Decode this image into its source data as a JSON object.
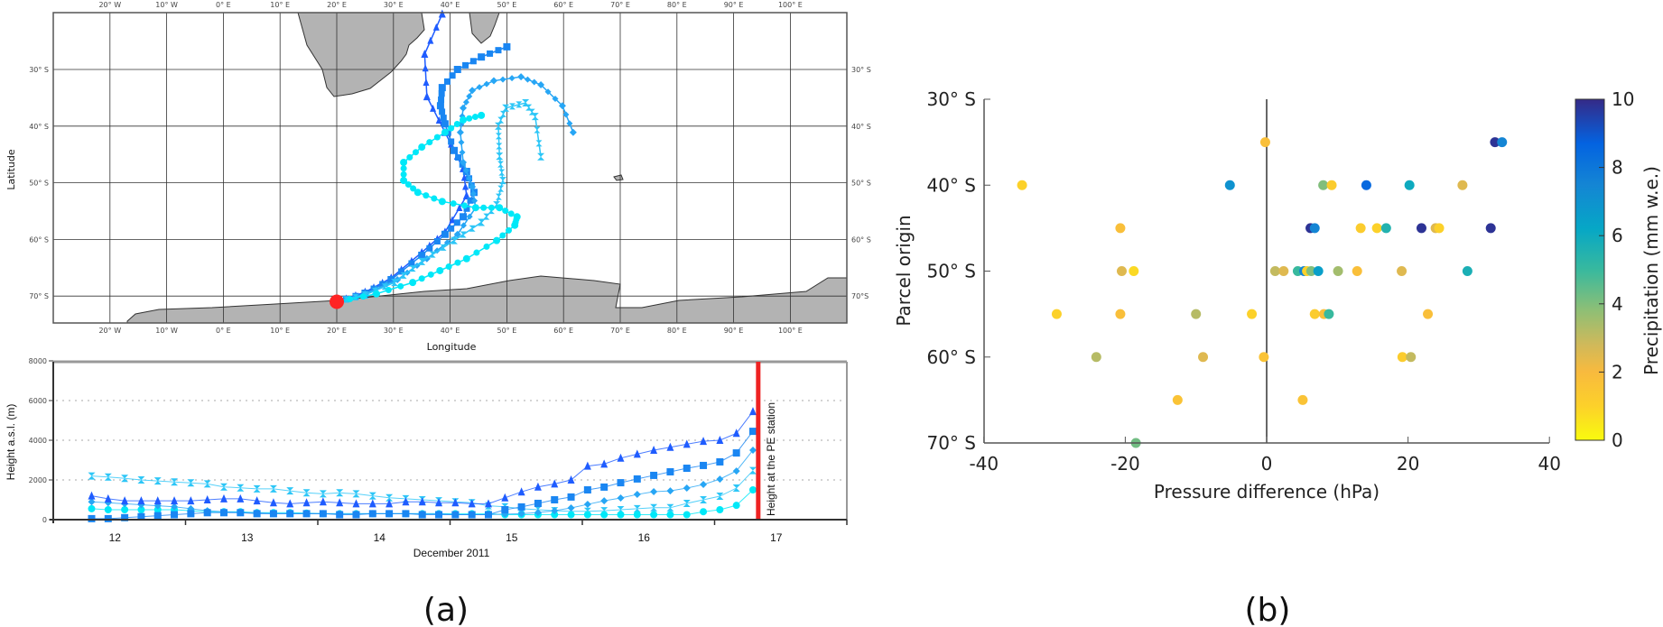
{
  "panel_labels": {
    "a": "(a)",
    "b": "(b)"
  },
  "chart_data": [
    {
      "type": "line",
      "panel": "a-top",
      "xlabel": "Longitude",
      "ylabel": "Latitude",
      "xlim": [
        -30,
        110
      ],
      "ylim": [
        -75,
        -20
      ],
      "x_ticks": [
        -20,
        -10,
        0,
        10,
        20,
        30,
        40,
        50,
        60,
        70,
        80,
        90,
        100
      ],
      "x_tick_labels": [
        "20° W",
        "10° W",
        "0° E",
        "10° E",
        "20° E",
        "30° E",
        "40° E",
        "50° E",
        "60° E",
        "70° E",
        "80° E",
        "90° E",
        "100° E"
      ],
      "y_ticks": [
        -30,
        -40,
        -50,
        -60,
        -70
      ],
      "y_tick_labels_left": [
        "30° S",
        "40° S",
        "50° S",
        "60° S",
        "70° S"
      ],
      "y_tick_labels_right": [
        "30° S",
        "40° S",
        "50° S",
        "60° S",
        "70°S"
      ],
      "grid": true,
      "land_color": "#b3b3b3",
      "station": {
        "lon": 20,
        "lat": -71,
        "color": "#ff2424"
      },
      "series": [
        {
          "marker": "triangle",
          "color": "#1f5cff",
          "lon": [
            38.6,
            35.5,
            35.9,
            39.1,
            42.3,
            42.9,
            39.1,
            35,
            29.6,
            25,
            20
          ],
          "lat": [
            -20.2,
            -27.3,
            -34.8,
            -41.1,
            -47.5,
            -52.3,
            -58.7,
            -62.3,
            -66.8,
            -69.3,
            -71
          ]
        },
        {
          "marker": "square",
          "color": "#1a86f2",
          "lon": [
            50,
            45.5,
            41.3,
            38.6,
            38.3,
            39.1,
            40.7,
            42.9,
            44.2,
            42.3,
            39.1,
            35,
            29.6,
            25,
            20
          ],
          "lat": [
            -26,
            -27.8,
            -30,
            -33.2,
            -36.4,
            -39.6,
            -44.3,
            -48,
            -51.7,
            -56,
            -59.1,
            -62.8,
            -67.1,
            -69.5,
            -71
          ]
        },
        {
          "marker": "diamond",
          "color": "#27a6f5",
          "lon": [
            61.7,
            59.8,
            56,
            52.5,
            47.7,
            43.9,
            42.3,
            41.8,
            42.3,
            43.9,
            44.5,
            41.3,
            35.9,
            30.7,
            25,
            20
          ],
          "lat": [
            -41.1,
            -36.4,
            -32.7,
            -31.3,
            -32,
            -33.7,
            -36.8,
            -41.1,
            -46.4,
            -50.7,
            -54.4,
            -59.1,
            -63.4,
            -67.1,
            -69.6,
            -71
          ]
        },
        {
          "marker": "hourglass",
          "color": "#2cc6f7",
          "lon": [
            56,
            55,
            53.3,
            49.8,
            48.5,
            48.7,
            49.3,
            48.2,
            45.5,
            40.7,
            35,
            30.2,
            25,
            20
          ],
          "lat": [
            -45.4,
            -38.3,
            -35.9,
            -36.8,
            -40,
            -45.3,
            -49.6,
            -53.9,
            -57,
            -60.2,
            -63.9,
            -67.6,
            -69.8,
            -71
          ]
        },
        {
          "marker": "circle",
          "color": "#00e8f8",
          "lon": [
            45.5,
            42.3,
            39.1,
            35,
            31.8,
            31.8,
            34.3,
            38.6,
            44.5,
            48.7,
            51.8,
            51.4,
            48.2,
            42.9,
            38.2,
            33.4,
            27,
            20
          ],
          "lat": [
            -38.1,
            -38.9,
            -41.1,
            -43.7,
            -46.4,
            -49.6,
            -51.7,
            -53.3,
            -54.4,
            -54.4,
            -56,
            -57.5,
            -60.2,
            -63.4,
            -65.5,
            -67.6,
            -69.6,
            -71
          ]
        }
      ]
    },
    {
      "type": "line",
      "panel": "a-bottom",
      "xlabel": "December 2011",
      "ylabel": "Height a.s.l. (m)",
      "xlim": [
        11.5,
        17.5
      ],
      "ylim": [
        0,
        8000
      ],
      "x_tick_labels": [
        "12",
        "13",
        "14",
        "15",
        "16",
        "17"
      ],
      "y_ticks": [
        0,
        2000,
        4000,
        6000,
        8000
      ],
      "y_tick_labels": [
        "0",
        "2000",
        "4000",
        "6000",
        "8000"
      ],
      "grid": "horizontal-dotted",
      "annotation": {
        "text": "Height at the PE station",
        "x": 16.83,
        "color": "#ee2222"
      },
      "x": [
        11.79,
        11.915,
        12.04,
        12.165,
        12.29,
        12.415,
        12.54,
        12.665,
        12.79,
        12.915,
        13.04,
        13.165,
        13.29,
        13.415,
        13.54,
        13.665,
        13.79,
        13.915,
        14.04,
        14.165,
        14.29,
        14.415,
        14.54,
        14.665,
        14.79,
        14.915,
        15.04,
        15.165,
        15.29,
        15.415,
        15.54,
        15.665,
        15.79,
        15.915,
        16.04,
        16.165,
        16.29,
        16.415,
        16.54,
        16.665,
        16.79
      ],
      "series": [
        {
          "marker": "hourglass",
          "color": "#2cc6f7",
          "values": [
            2200,
            2150,
            2080,
            2000,
            1950,
            1900,
            1850,
            1800,
            1650,
            1600,
            1550,
            1550,
            1450,
            1350,
            1300,
            1350,
            1300,
            1200,
            1100,
            1050,
            1000,
            950,
            900,
            850,
            700,
            650,
            550,
            500,
            450,
            420,
            420,
            450,
            500,
            550,
            600,
            600,
            820,
            1000,
            1180,
            1590,
            2470
          ]
        },
        {
          "marker": "circle",
          "color": "#00e8f8",
          "values": [
            550,
            500,
            500,
            500,
            500,
            500,
            450,
            400,
            400,
            400,
            350,
            350,
            350,
            330,
            300,
            300,
            300,
            300,
            300,
            300,
            300,
            300,
            300,
            300,
            300,
            250,
            250,
            250,
            250,
            250,
            250,
            250,
            250,
            250,
            250,
            250,
            250,
            400,
            500,
            720,
            1500
          ]
        },
        {
          "marker": "diamond",
          "color": "#27a6f5",
          "values": [
            900,
            850,
            800,
            750,
            700,
            650,
            550,
            450,
            400,
            350,
            350,
            300,
            300,
            300,
            300,
            300,
            300,
            300,
            300,
            300,
            300,
            300,
            250,
            250,
            250,
            280,
            300,
            360,
            450,
            590,
            770,
            950,
            1090,
            1270,
            1410,
            1450,
            1590,
            1770,
            2040,
            2450,
            3500
          ]
        },
        {
          "marker": "square",
          "color": "#1a86f2",
          "values": [
            50,
            50,
            100,
            150,
            200,
            250,
            300,
            350,
            350,
            350,
            300,
            300,
            300,
            300,
            300,
            250,
            250,
            300,
            300,
            300,
            250,
            250,
            250,
            250,
            250,
            500,
            640,
            820,
            1000,
            1140,
            1500,
            1640,
            1860,
            2050,
            2230,
            2410,
            2590,
            2730,
            2910,
            3360,
            4450
          ]
        },
        {
          "marker": "triangle",
          "color": "#1f5cff",
          "values": [
            1200,
            1050,
            950,
            950,
            950,
            950,
            950,
            1000,
            1050,
            1050,
            950,
            850,
            800,
            850,
            900,
            850,
            800,
            800,
            800,
            900,
            900,
            850,
            850,
            800,
            800,
            1100,
            1400,
            1650,
            1800,
            2000,
            2700,
            2800,
            3100,
            3300,
            3500,
            3650,
            3800,
            3950,
            4000,
            4350,
            5450
          ]
        }
      ]
    },
    {
      "type": "scatter",
      "panel": "b",
      "xlabel": "Pressure difference (hPa)",
      "ylabel": "Parcel origin",
      "xlim": [
        -40,
        40
      ],
      "ylim": [
        30,
        70
      ],
      "x_ticks": [
        -40,
        -20,
        0,
        20,
        40
      ],
      "x_tick_labels": [
        "-40",
        "-20",
        "0",
        "20",
        "40"
      ],
      "y_ticks": [
        30,
        40,
        50,
        60,
        70
      ],
      "y_tick_labels": [
        "30° S",
        "40° S",
        "50° S",
        "60° S",
        "70° S"
      ],
      "zero_line": true,
      "colorbar": {
        "label": "Precipitation (mm w.e.)",
        "range": [
          0,
          10
        ],
        "ticks": [
          0,
          2,
          4,
          6,
          8,
          10
        ],
        "tick_labels": [
          "0",
          "2",
          "4",
          "6",
          "8",
          "10"
        ],
        "colormap": "parula"
      },
      "columns": [
        "pressure_difference_hPa",
        "origin_latitude_S",
        "precipitation_mm_we"
      ],
      "rows": [
        [
          -34.6,
          40,
          1.0
        ],
        [
          -0.2,
          35,
          1.8
        ],
        [
          32.3,
          35,
          9.8
        ],
        [
          33.3,
          35,
          7.5
        ],
        [
          -5.2,
          40,
          7.0
        ],
        [
          8.0,
          40,
          4.0
        ],
        [
          9.2,
          40,
          1.2
        ],
        [
          14.1,
          40,
          8.5
        ],
        [
          20.2,
          40,
          6.0
        ],
        [
          27.7,
          40,
          2.5
        ],
        [
          -20.7,
          45,
          1.8
        ],
        [
          6.2,
          45,
          9.8
        ],
        [
          6.8,
          45,
          7.5
        ],
        [
          13.3,
          45,
          1.2
        ],
        [
          15.6,
          45,
          1.0
        ],
        [
          16.9,
          45,
          5.5
        ],
        [
          21.9,
          45,
          9.8
        ],
        [
          23.9,
          45,
          2.5
        ],
        [
          24.4,
          45,
          1.0
        ],
        [
          31.7,
          45,
          9.8
        ],
        [
          -20.5,
          50,
          2.5
        ],
        [
          -18.8,
          50,
          0.8
        ],
        [
          1.2,
          50,
          3.0
        ],
        [
          2.4,
          50,
          2.5
        ],
        [
          4.4,
          50,
          5.0
        ],
        [
          5.3,
          50,
          7.5
        ],
        [
          5.7,
          50,
          1.0
        ],
        [
          6.3,
          50,
          4.0
        ],
        [
          7.3,
          50,
          6.5
        ],
        [
          10.1,
          50,
          3.5
        ],
        [
          12.8,
          50,
          1.8
        ],
        [
          19.1,
          50,
          2.5
        ],
        [
          28.4,
          50,
          5.7
        ],
        [
          -29.7,
          55,
          1.0
        ],
        [
          -20.7,
          55,
          1.8
        ],
        [
          -10.0,
          55,
          3.2
        ],
        [
          -2.1,
          55,
          1.0
        ],
        [
          6.8,
          55,
          1.2
        ],
        [
          8.1,
          55,
          1.8
        ],
        [
          8.8,
          55,
          5.0
        ],
        [
          22.8,
          55,
          1.8
        ],
        [
          -24.1,
          60,
          3.2
        ],
        [
          -9.0,
          60,
          2.5
        ],
        [
          -0.4,
          60,
          1.6
        ],
        [
          19.2,
          60,
          1.2
        ],
        [
          20.4,
          60,
          3.0
        ],
        [
          -12.6,
          65,
          1.6
        ],
        [
          5.1,
          65,
          1.6
        ],
        [
          -18.5,
          70,
          4.2
        ]
      ]
    }
  ]
}
